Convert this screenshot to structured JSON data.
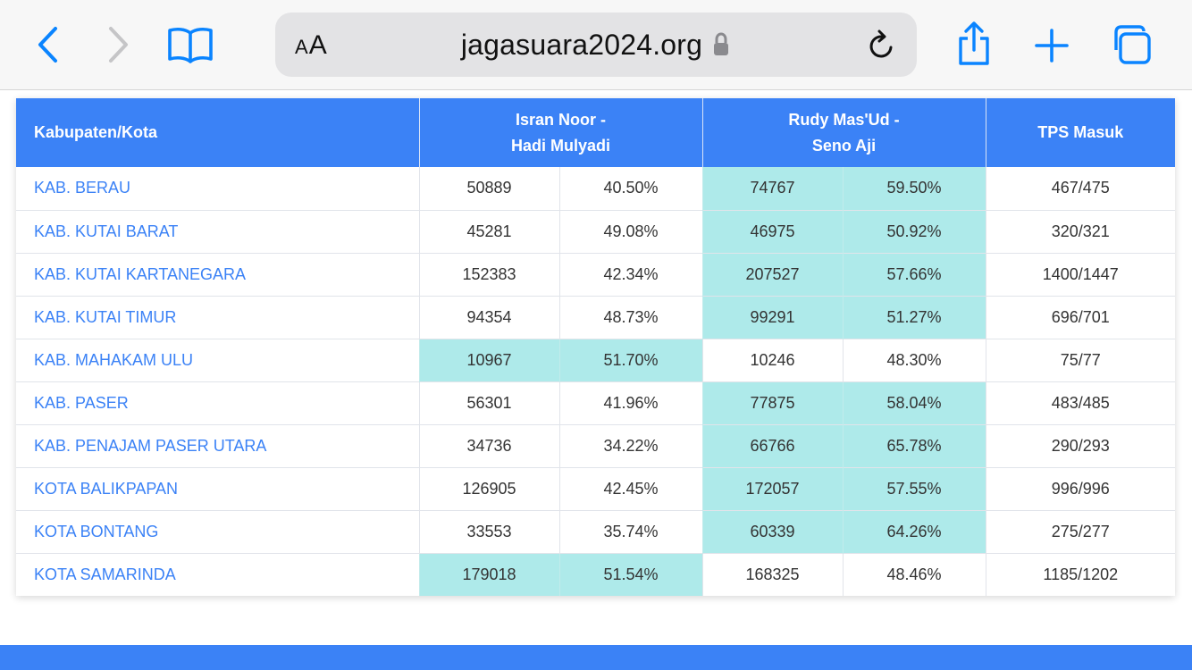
{
  "browser": {
    "text_size_label": "AA",
    "text_size_small": "A",
    "text_size_large": "A",
    "url": "jagasuara2024.org"
  },
  "colors": {
    "header_blue": "#3b82f6",
    "winner_cell": "#aeeaea",
    "link_blue": "#3b82f6",
    "icon_blue": "#0a84ff"
  },
  "table": {
    "headers": {
      "region": "Kabupaten/Kota",
      "candidate1_line1": "Isran Noor -",
      "candidate1_line2": "Hadi Mulyadi",
      "candidate2_line1": "Rudy Mas'Ud -",
      "candidate2_line2": "Seno Aji",
      "tps": "TPS Masuk"
    },
    "rows": [
      {
        "region": "KAB. BERAU",
        "c1_votes": "50889",
        "c1_pct": "40.50%",
        "c2_votes": "74767",
        "c2_pct": "59.50%",
        "tps": "467/475",
        "winner": 2
      },
      {
        "region": "KAB. KUTAI BARAT",
        "c1_votes": "45281",
        "c1_pct": "49.08%",
        "c2_votes": "46975",
        "c2_pct": "50.92%",
        "tps": "320/321",
        "winner": 2
      },
      {
        "region": "KAB. KUTAI KARTANEGARA",
        "c1_votes": "152383",
        "c1_pct": "42.34%",
        "c2_votes": "207527",
        "c2_pct": "57.66%",
        "tps": "1400/1447",
        "winner": 2
      },
      {
        "region": "KAB. KUTAI TIMUR",
        "c1_votes": "94354",
        "c1_pct": "48.73%",
        "c2_votes": "99291",
        "c2_pct": "51.27%",
        "tps": "696/701",
        "winner": 2
      },
      {
        "region": "KAB. MAHAKAM ULU",
        "c1_votes": "10967",
        "c1_pct": "51.70%",
        "c2_votes": "10246",
        "c2_pct": "48.30%",
        "tps": "75/77",
        "winner": 1
      },
      {
        "region": "KAB. PASER",
        "c1_votes": "56301",
        "c1_pct": "41.96%",
        "c2_votes": "77875",
        "c2_pct": "58.04%",
        "tps": "483/485",
        "winner": 2
      },
      {
        "region": "KAB. PENAJAM PASER UTARA",
        "c1_votes": "34736",
        "c1_pct": "34.22%",
        "c2_votes": "66766",
        "c2_pct": "65.78%",
        "tps": "290/293",
        "winner": 2
      },
      {
        "region": "KOTA BALIKPAPAN",
        "c1_votes": "126905",
        "c1_pct": "42.45%",
        "c2_votes": "172057",
        "c2_pct": "57.55%",
        "tps": "996/996",
        "winner": 2
      },
      {
        "region": "KOTA BONTANG",
        "c1_votes": "33553",
        "c1_pct": "35.74%",
        "c2_votes": "60339",
        "c2_pct": "64.26%",
        "tps": "275/277",
        "winner": 2
      },
      {
        "region": "KOTA SAMARINDA",
        "c1_votes": "179018",
        "c1_pct": "51.54%",
        "c2_votes": "168325",
        "c2_pct": "48.46%",
        "tps": "1185/1202",
        "winner": 1
      }
    ]
  }
}
